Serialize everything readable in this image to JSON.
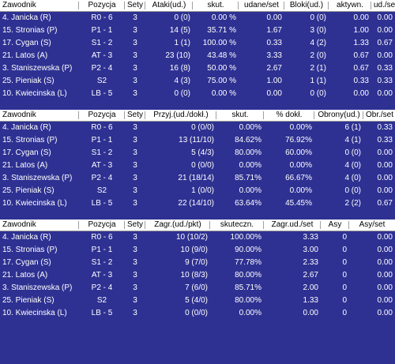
{
  "tables": [
    {
      "headers": [
        "Zawodnik",
        "Pozycja",
        "Sety",
        "Ataki(ud.)",
        "skut.",
        "udane/set",
        "Bloki(ud.)",
        "aktywn.",
        "ud./set"
      ],
      "rows": [
        [
          "4. Janicka (R)",
          "R0 - 6",
          "3",
          "0 (0)",
          "0.00 %",
          "0.00",
          "0 (0)",
          "0.00",
          "0.00"
        ],
        [
          "15. Stronias (P)",
          "P1 - 1",
          "3",
          "14 (5)",
          "35.71 %",
          "1.67",
          "3 (0)",
          "1.00",
          "0.00"
        ],
        [
          "17. Cygan (S)",
          "S1 - 2",
          "3",
          "1 (1)",
          "100.00 %",
          "0.33",
          "4 (2)",
          "1.33",
          "0.67"
        ],
        [
          "21. Latos (A)",
          "AT - 3",
          "3",
          "23 (10)",
          "43.48 %",
          "3.33",
          "2 (0)",
          "0.67",
          "0.00"
        ],
        [
          "3. Staniszewska (P)",
          "P2 - 4",
          "3",
          "16 (8)",
          "50.00 %",
          "2.67",
          "2 (1)",
          "0.67",
          "0.33"
        ],
        [
          "25. Pieniak (S)",
          "S2",
          "3",
          "4 (3)",
          "75.00 %",
          "1.00",
          "1 (1)",
          "0.33",
          "0.33"
        ],
        [
          "10. Kwiecinska (L)",
          "LB - 5",
          "3",
          "0 (0)",
          "0.00 %",
          "0.00",
          "0 (0)",
          "0.00",
          "0.00"
        ]
      ]
    },
    {
      "headers": [
        "Zawodnik",
        "Pozycja",
        "Sety",
        "Przyj.(ud./dokł.)",
        "skut.",
        "% dokł.",
        "Obrony(ud.)",
        "Obr./set"
      ],
      "rows": [
        [
          "4. Janicka (R)",
          "R0 - 6",
          "3",
          "0 (0/0)",
          "0.00%",
          "0.00%",
          "6 (1)",
          "0.33"
        ],
        [
          "15. Stronias (P)",
          "P1 - 1",
          "3",
          "13 (11/10)",
          "84.62%",
          "76.92%",
          "4 (1)",
          "0.33"
        ],
        [
          "17. Cygan (S)",
          "S1 - 2",
          "3",
          "5 (4/3)",
          "80.00%",
          "60.00%",
          "0 (0)",
          "0.00"
        ],
        [
          "21. Latos (A)",
          "AT - 3",
          "3",
          "0 (0/0)",
          "0.00%",
          "0.00%",
          "4 (0)",
          "0.00"
        ],
        [
          "3. Staniszewska (P)",
          "P2 - 4",
          "3",
          "21 (18/14)",
          "85.71%",
          "66.67%",
          "4 (0)",
          "0.00"
        ],
        [
          "25. Pieniak (S)",
          "S2",
          "3",
          "1 (0/0)",
          "0.00%",
          "0.00%",
          "0 (0)",
          "0.00"
        ],
        [
          "10. Kwiecinska (L)",
          "LB - 5",
          "3",
          "22 (14/10)",
          "63.64%",
          "45.45%",
          "2 (2)",
          "0.67"
        ]
      ]
    },
    {
      "headers": [
        "Zawodnik",
        "Pozycja",
        "Sety",
        "Zagr.(ud./pkt)",
        "skuteczn.",
        "Zagr.ud./set",
        "Asy",
        "Asy/set"
      ],
      "rows": [
        [
          "4. Janicka (R)",
          "R0 - 6",
          "3",
          "10 (10/2)",
          "100.00%",
          "3.33",
          "0",
          "0.00"
        ],
        [
          "15. Stronias (P)",
          "P1 - 1",
          "3",
          "10 (9/0)",
          "90.00%",
          "3.00",
          "0",
          "0.00"
        ],
        [
          "17. Cygan (S)",
          "S1 - 2",
          "3",
          "9 (7/0)",
          "77.78%",
          "2.33",
          "0",
          "0.00"
        ],
        [
          "21. Latos (A)",
          "AT - 3",
          "3",
          "10 (8/3)",
          "80.00%",
          "2.67",
          "0",
          "0.00"
        ],
        [
          "3. Staniszewska (P)",
          "P2 - 4",
          "3",
          "7 (6/0)",
          "85.71%",
          "2.00",
          "0",
          "0.00"
        ],
        [
          "25. Pieniak (S)",
          "S2",
          "3",
          "5 (4/0)",
          "80.00%",
          "1.33",
          "0",
          "0.00"
        ],
        [
          "10. Kwiecinska (L)",
          "LB - 5",
          "3",
          "0 (0/0)",
          "0.00%",
          "0.00",
          "0",
          "0.00"
        ]
      ]
    }
  ]
}
